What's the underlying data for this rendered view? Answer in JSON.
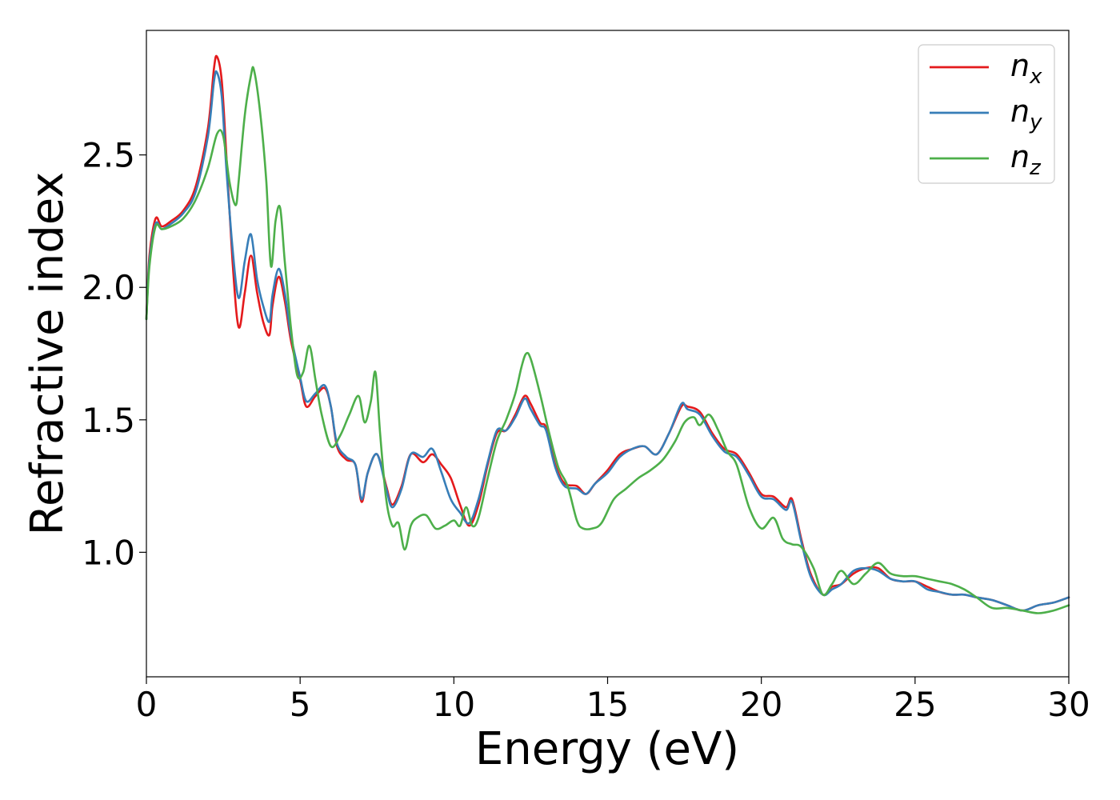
{
  "chart_data": {
    "type": "line",
    "title": "",
    "xlabel": "Energy (eV)",
    "ylabel": "Refractive index",
    "xlim": [
      0,
      30
    ],
    "ylim": [
      0.53,
      2.97
    ],
    "xticks": [
      0,
      5,
      10,
      15,
      20,
      25,
      30
    ],
    "yticks": [
      1.0,
      1.5,
      2.0,
      2.5
    ],
    "xtick_labels": [
      "0",
      "5",
      "10",
      "15",
      "20",
      "25",
      "30"
    ],
    "ytick_labels": [
      "1.0",
      "1.5",
      "2.0",
      "2.5"
    ],
    "grid": false,
    "legend_position": "top-right",
    "series": [
      {
        "name": "n_x",
        "legend_main": "n",
        "legend_sub": "x",
        "color": "#e41a1c",
        "x": [
          0,
          0.1,
          0.3,
          0.5,
          0.8,
          1.2,
          1.6,
          2.0,
          2.2,
          2.3,
          2.45,
          2.6,
          2.8,
          3.0,
          3.2,
          3.4,
          3.6,
          3.8,
          4.0,
          4.1,
          4.3,
          4.5,
          4.7,
          5.0,
          5.2,
          5.5,
          5.8,
          6.0,
          6.2,
          6.5,
          6.8,
          7.0,
          7.2,
          7.5,
          7.8,
          8.0,
          8.3,
          8.6,
          9.0,
          9.3,
          9.6,
          9.9,
          10.2,
          10.5,
          10.8,
          11.1,
          11.4,
          11.7,
          12.0,
          12.3,
          12.5,
          12.8,
          13.0,
          13.3,
          13.6,
          14.0,
          14.3,
          14.6,
          15.0,
          15.4,
          15.8,
          16.2,
          16.6,
          17.0,
          17.4,
          17.6,
          18.0,
          18.4,
          18.8,
          19.2,
          19.6,
          20.0,
          20.4,
          20.8,
          21.0,
          21.3,
          21.6,
          22.0,
          22.3,
          22.6,
          23.0,
          23.4,
          23.8,
          24.2,
          24.6,
          25.0,
          25.4,
          25.8,
          26.2,
          26.6,
          27.0,
          27.5,
          28.0,
          28.5,
          29.0,
          29.5,
          30.0
        ],
        "y": [
          1.88,
          2.12,
          2.26,
          2.23,
          2.25,
          2.29,
          2.38,
          2.6,
          2.83,
          2.87,
          2.78,
          2.5,
          2.1,
          1.85,
          1.98,
          2.12,
          1.98,
          1.87,
          1.82,
          1.93,
          2.04,
          1.95,
          1.8,
          1.65,
          1.55,
          1.59,
          1.62,
          1.55,
          1.4,
          1.35,
          1.33,
          1.19,
          1.3,
          1.37,
          1.25,
          1.18,
          1.25,
          1.37,
          1.34,
          1.37,
          1.33,
          1.28,
          1.18,
          1.1,
          1.18,
          1.33,
          1.45,
          1.46,
          1.52,
          1.59,
          1.56,
          1.49,
          1.47,
          1.33,
          1.26,
          1.25,
          1.22,
          1.26,
          1.31,
          1.37,
          1.39,
          1.4,
          1.37,
          1.45,
          1.55,
          1.55,
          1.53,
          1.45,
          1.39,
          1.37,
          1.3,
          1.22,
          1.21,
          1.17,
          1.2,
          1.05,
          0.92,
          0.84,
          0.87,
          0.88,
          0.92,
          0.94,
          0.94,
          0.9,
          0.89,
          0.89,
          0.87,
          0.85,
          0.84,
          0.84,
          0.83,
          0.82,
          0.8,
          0.78,
          0.8,
          0.81,
          0.83
        ]
      },
      {
        "name": "n_y",
        "legend_main": "n",
        "legend_sub": "y",
        "color": "#377eb8",
        "x": [
          0,
          0.1,
          0.3,
          0.5,
          0.8,
          1.2,
          1.6,
          2.0,
          2.2,
          2.3,
          2.45,
          2.6,
          2.8,
          3.0,
          3.2,
          3.4,
          3.6,
          3.8,
          4.0,
          4.1,
          4.3,
          4.5,
          4.7,
          5.0,
          5.2,
          5.5,
          5.8,
          6.0,
          6.2,
          6.5,
          6.8,
          7.0,
          7.2,
          7.5,
          7.8,
          8.0,
          8.3,
          8.6,
          9.0,
          9.3,
          9.6,
          9.9,
          10.2,
          10.5,
          10.8,
          11.1,
          11.4,
          11.7,
          12.0,
          12.3,
          12.5,
          12.8,
          13.0,
          13.3,
          13.6,
          14.0,
          14.3,
          14.6,
          15.0,
          15.4,
          15.8,
          16.2,
          16.6,
          17.0,
          17.4,
          17.6,
          18.0,
          18.4,
          18.8,
          19.2,
          19.6,
          20.0,
          20.4,
          20.8,
          21.0,
          21.3,
          21.6,
          22.0,
          22.3,
          22.6,
          23.0,
          23.4,
          23.8,
          24.2,
          24.6,
          25.0,
          25.4,
          25.8,
          26.2,
          26.6,
          27.0,
          27.5,
          28.0,
          28.5,
          29.0,
          29.5,
          30.0
        ],
        "y": [
          1.88,
          2.1,
          2.24,
          2.22,
          2.24,
          2.28,
          2.36,
          2.57,
          2.78,
          2.81,
          2.72,
          2.45,
          2.15,
          1.96,
          2.1,
          2.2,
          2.03,
          1.93,
          1.87,
          1.97,
          2.07,
          1.98,
          1.82,
          1.66,
          1.57,
          1.6,
          1.63,
          1.55,
          1.41,
          1.36,
          1.33,
          1.2,
          1.3,
          1.37,
          1.24,
          1.17,
          1.24,
          1.37,
          1.36,
          1.39,
          1.3,
          1.2,
          1.15,
          1.11,
          1.2,
          1.34,
          1.46,
          1.46,
          1.51,
          1.58,
          1.54,
          1.48,
          1.46,
          1.32,
          1.25,
          1.24,
          1.22,
          1.26,
          1.3,
          1.36,
          1.39,
          1.4,
          1.37,
          1.45,
          1.56,
          1.54,
          1.52,
          1.44,
          1.38,
          1.36,
          1.29,
          1.21,
          1.2,
          1.16,
          1.19,
          1.04,
          0.91,
          0.84,
          0.86,
          0.88,
          0.93,
          0.94,
          0.93,
          0.9,
          0.89,
          0.89,
          0.86,
          0.85,
          0.84,
          0.84,
          0.83,
          0.82,
          0.8,
          0.78,
          0.8,
          0.81,
          0.83
        ]
      },
      {
        "name": "n_z",
        "legend_main": "n",
        "legend_sub": "z",
        "color": "#4daf4a",
        "x": [
          0,
          0.1,
          0.3,
          0.5,
          0.8,
          1.2,
          1.6,
          2.0,
          2.3,
          2.5,
          2.7,
          2.9,
          3.0,
          3.2,
          3.4,
          3.5,
          3.7,
          3.9,
          4.05,
          4.2,
          4.35,
          4.5,
          4.7,
          4.9,
          5.1,
          5.3,
          5.5,
          5.7,
          6.0,
          6.3,
          6.6,
          6.9,
          7.1,
          7.3,
          7.45,
          7.6,
          7.8,
          8.0,
          8.2,
          8.4,
          8.6,
          8.8,
          9.1,
          9.4,
          9.7,
          10.0,
          10.2,
          10.4,
          10.6,
          10.8,
          11.1,
          11.4,
          11.7,
          12.0,
          12.2,
          12.35,
          12.5,
          12.8,
          13.1,
          13.4,
          13.7,
          14.0,
          14.2,
          14.5,
          14.8,
          15.2,
          15.6,
          16.0,
          16.4,
          16.8,
          17.2,
          17.5,
          17.8,
          18.0,
          18.3,
          18.6,
          18.9,
          19.2,
          19.6,
          20.0,
          20.4,
          20.7,
          21.0,
          21.3,
          21.7,
          22.0,
          22.3,
          22.6,
          23.0,
          23.4,
          23.8,
          24.2,
          24.6,
          25.0,
          25.4,
          25.8,
          26.2,
          26.6,
          27.0,
          27.5,
          28.0,
          28.5,
          29.0,
          29.5,
          30.0
        ],
        "y": [
          1.88,
          2.08,
          2.23,
          2.22,
          2.23,
          2.26,
          2.33,
          2.45,
          2.58,
          2.57,
          2.4,
          2.31,
          2.4,
          2.65,
          2.8,
          2.82,
          2.66,
          2.4,
          2.08,
          2.25,
          2.3,
          2.1,
          1.85,
          1.67,
          1.68,
          1.78,
          1.65,
          1.52,
          1.4,
          1.44,
          1.52,
          1.59,
          1.49,
          1.57,
          1.68,
          1.45,
          1.2,
          1.1,
          1.11,
          1.01,
          1.1,
          1.13,
          1.14,
          1.09,
          1.1,
          1.12,
          1.1,
          1.17,
          1.1,
          1.13,
          1.28,
          1.42,
          1.5,
          1.6,
          1.7,
          1.75,
          1.73,
          1.6,
          1.45,
          1.32,
          1.25,
          1.12,
          1.09,
          1.09,
          1.11,
          1.2,
          1.24,
          1.28,
          1.31,
          1.35,
          1.42,
          1.49,
          1.51,
          1.48,
          1.52,
          1.46,
          1.38,
          1.33,
          1.17,
          1.09,
          1.13,
          1.05,
          1.03,
          1.02,
          0.94,
          0.84,
          0.88,
          0.93,
          0.88,
          0.92,
          0.96,
          0.92,
          0.91,
          0.91,
          0.9,
          0.89,
          0.88,
          0.86,
          0.83,
          0.79,
          0.79,
          0.78,
          0.77,
          0.78,
          0.8
        ]
      }
    ]
  }
}
